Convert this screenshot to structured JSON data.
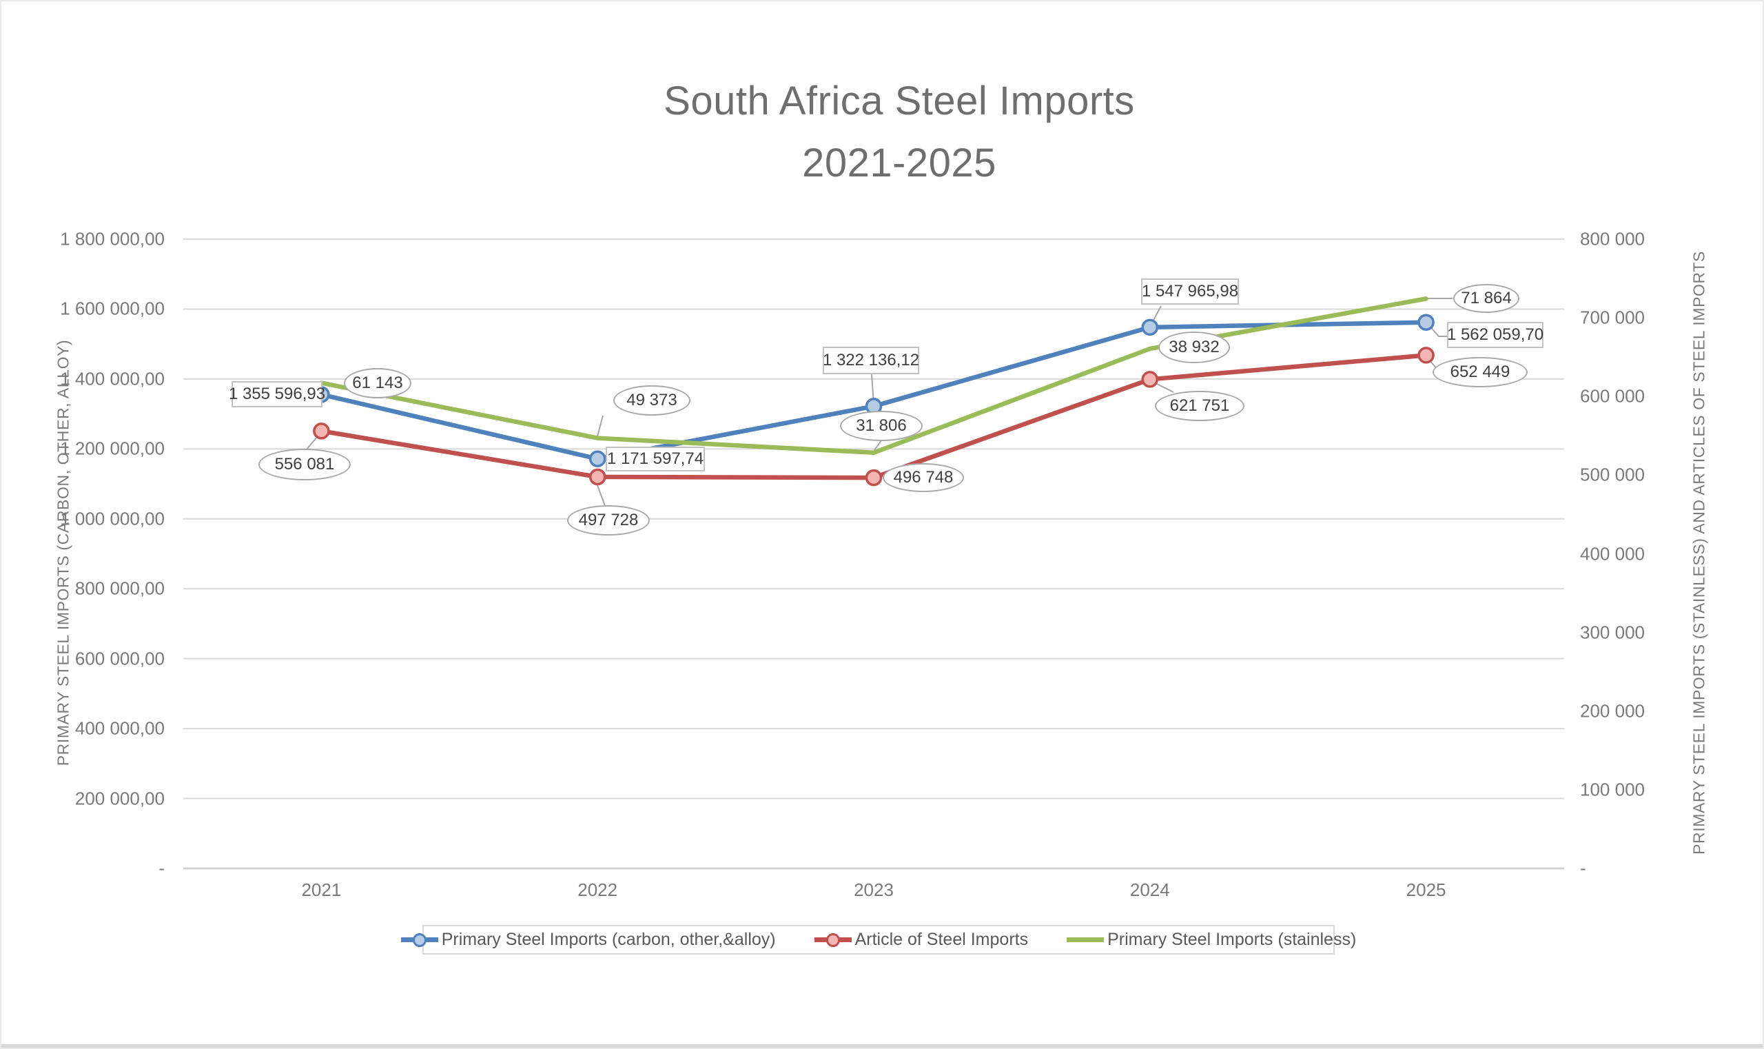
{
  "title": {
    "line1": "South Africa Steel Imports",
    "line2": "2021-2025"
  },
  "left_axis": {
    "title": "PRIMARY STEEL IMPORTS (CARBON, OTHER, ALLOY)",
    "max": 1800000,
    "tick_labels": [
      "1 800 000,00",
      "1 600 000,00",
      "1 400 000,00",
      "1 200 000,00",
      "1 000 000,00",
      "800 000,00",
      "600 000,00",
      "400 000,00",
      "200 000,00",
      "-"
    ],
    "tick_values": [
      1800000,
      1600000,
      1400000,
      1200000,
      1000000,
      800000,
      600000,
      400000,
      200000,
      0
    ]
  },
  "right_axis": {
    "title": "PRIMARY STEEL IMPORTS (STAINLESS) AND ARTICLES OF STEEL IMPORTS",
    "max": 800000,
    "tick_labels": [
      "800 000",
      "700 000",
      "600 000",
      "500 000",
      "400 000",
      "300 000",
      "200 000",
      "100 000",
      "-"
    ],
    "tick_values": [
      800000,
      700000,
      600000,
      500000,
      400000,
      300000,
      200000,
      100000,
      0
    ]
  },
  "chart_data": {
    "type": "line",
    "title": "South Africa Steel Imports 2021-2025",
    "categories": [
      "2021",
      "2022",
      "2023",
      "2024",
      "2025"
    ],
    "grid": true,
    "legend_position": "bottom",
    "colors": {
      "gridline": "#d9d9d9",
      "axis_line": "#d2d2d2",
      "leader": "#a6a6a6",
      "blue": "#4F81BD",
      "red": "#C0504D",
      "green": "#9BBB59",
      "blue_marker_fill": "#b5cce4",
      "red_marker_fill": "#f4b6b3"
    },
    "series": [
      {
        "name": "Primary Steel Imports (carbon, other,&alloy)",
        "axis": "left",
        "color": "#4F81BD",
        "marker": true,
        "label_shape": "rect",
        "values": [
          1355596.93,
          1171597.74,
          1322136.12,
          1547965.98,
          1562059.7
        ],
        "labels": [
          "1 355 596,93",
          "1 171 597,74",
          "1 322 136,12",
          "1 547 965,98",
          "1 562 059,70"
        ]
      },
      {
        "name": "Article of Steel Imports",
        "axis": "right",
        "color": "#C0504D",
        "marker": true,
        "label_shape": "ellipse",
        "values": [
          556081,
          497728,
          496748,
          621751,
          652449
        ],
        "labels": [
          "556 081",
          "497 728",
          "496 748",
          "621 751",
          "652 449"
        ]
      },
      {
        "name": "Primary Steel Imports (stainless)",
        "axis": "right",
        "color": "#9BBB59",
        "marker": false,
        "label_shape": "ellipse",
        "values": [
          61143,
          49373,
          31806,
          38932,
          71864
        ],
        "plotted_values": [
          617224,
          547101,
          528554,
          660683,
          724313
        ],
        "labels": [
          "61 143",
          "49 373",
          "31 806",
          "38 932",
          "71 864"
        ]
      }
    ]
  }
}
